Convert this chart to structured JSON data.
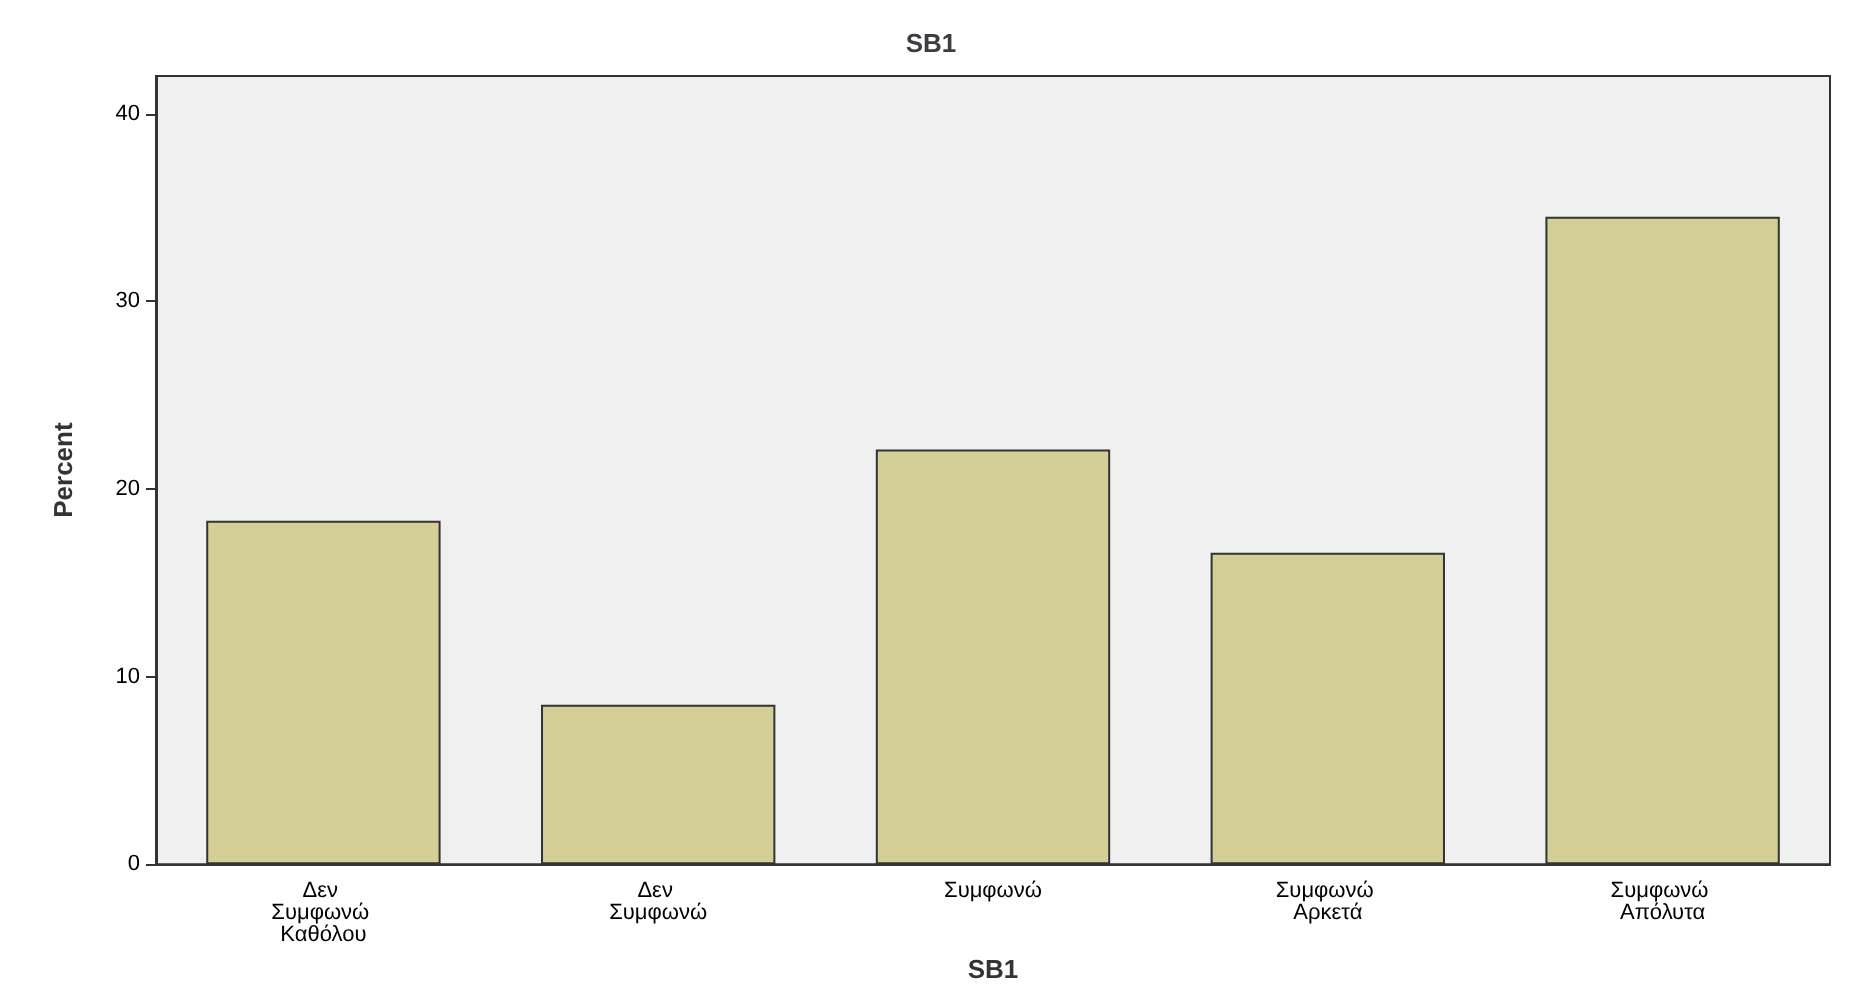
{
  "chart_data": {
    "type": "bar",
    "title": "SB1",
    "xlabel": "SB1",
    "ylabel": "Percent",
    "categories": [
      "Δεν Συμφωνώ Καθόλου",
      "Δεν Συμφωνώ",
      "Συμφωνώ",
      "Συμφωνώ Αρκετά",
      "Συμφωνώ Απόλυτα"
    ],
    "values": [
      18.3,
      8.5,
      22.1,
      16.6,
      34.5
    ],
    "color": "#d4cf96",
    "ylim": [
      0,
      42
    ],
    "yticks": [
      0,
      10,
      20,
      30,
      40
    ],
    "grid": false
  }
}
